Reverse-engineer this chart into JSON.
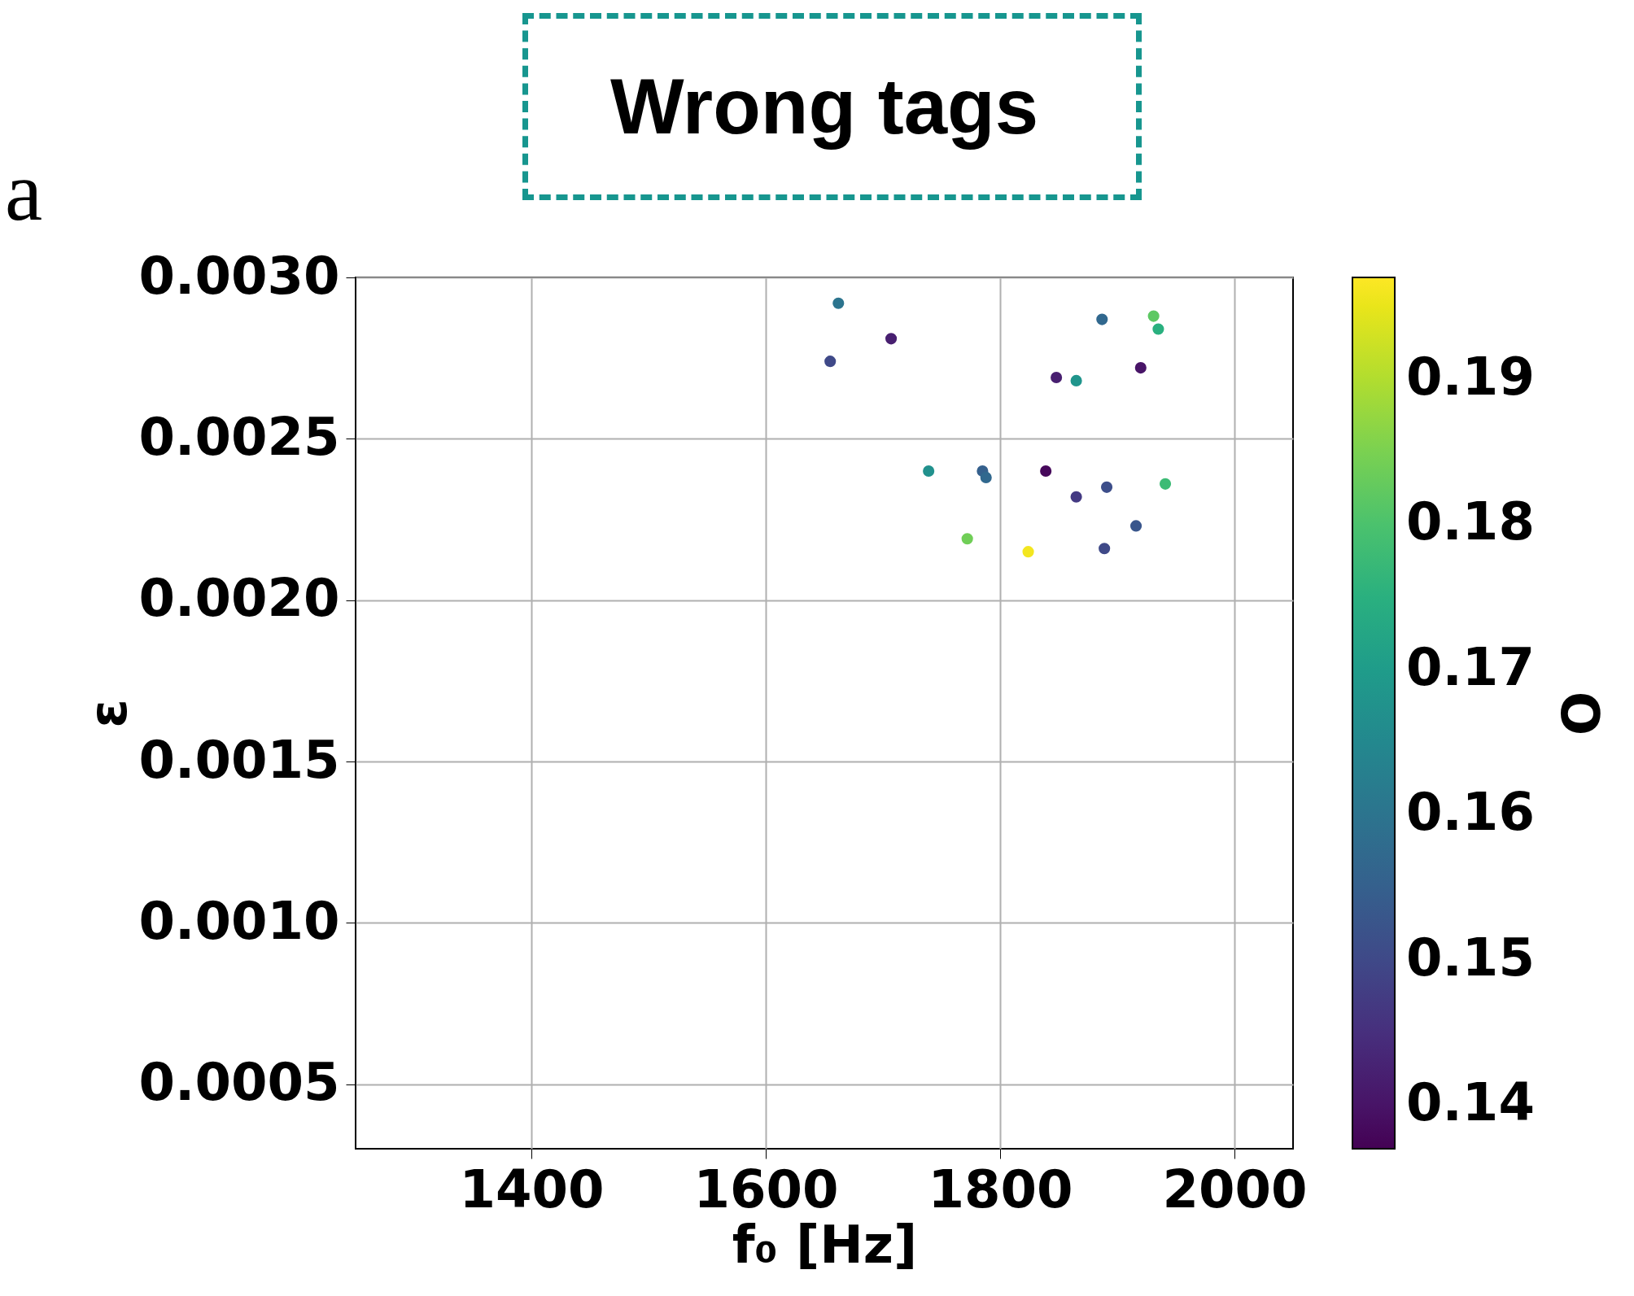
{
  "chart_data": {
    "type": "scatter",
    "title": "Wrong tags",
    "xlabel": "f₀ [Hz]",
    "ylabel": "ε",
    "clabel": "O",
    "annotations": [
      "a"
    ],
    "x": [
      1662,
      1707,
      1655,
      1887,
      1931,
      1935,
      1920,
      1848,
      1865,
      1739,
      1785,
      1788,
      1839,
      1865,
      1891,
      1941,
      1916,
      1772,
      1824,
      1889
    ],
    "values": [
      0.00292,
      0.00281,
      0.00274,
      0.00287,
      0.00288,
      0.00284,
      0.00272,
      0.00269,
      0.00268,
      0.0024,
      0.0024,
      0.00238,
      0.0024,
      0.00232,
      0.00235,
      0.00236,
      0.00223,
      0.00219,
      0.00215,
      0.00216
    ],
    "cvalues": [
      0.16,
      0.142,
      0.15,
      0.157,
      0.182,
      0.175,
      0.14,
      0.142,
      0.168,
      0.167,
      0.155,
      0.157,
      0.138,
      0.147,
      0.151,
      0.178,
      0.153,
      0.184,
      0.196,
      0.15
    ],
    "xlim": [
      1250,
      2050
    ],
    "xticks": [
      1400,
      1600,
      1800,
      2000
    ],
    "ylim": [
      0.0003,
      0.003
    ],
    "yticks": [
      {
        "value": 0.0005,
        "label": "0.0005"
      },
      {
        "value": 0.001,
        "label": "0.0010"
      },
      {
        "value": 0.0015,
        "label": "0.0015"
      },
      {
        "value": 0.002,
        "label": "0.0020"
      },
      {
        "value": 0.0025,
        "label": "0.0025"
      },
      {
        "value": 0.003,
        "label": "0.0030"
      }
    ],
    "clim": [
      0.137,
      0.197
    ],
    "cticks": [
      0.14,
      0.15,
      0.16,
      0.17,
      0.18,
      0.19
    ],
    "grid": true,
    "marker": "circle"
  }
}
